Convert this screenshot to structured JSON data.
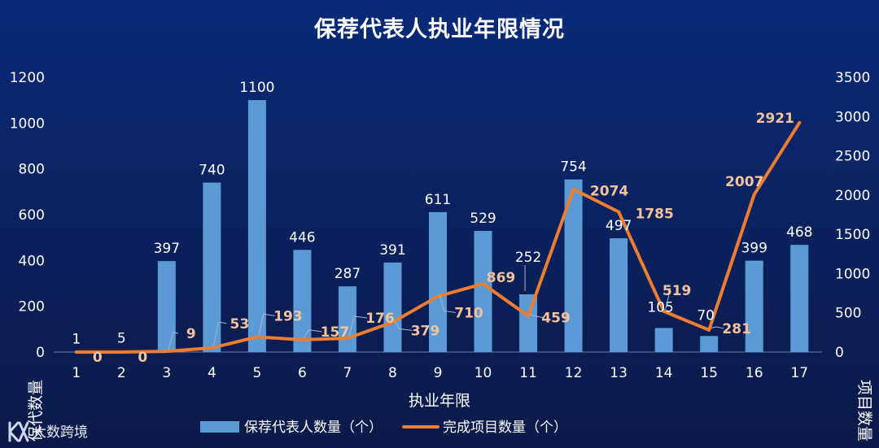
{
  "title": "保荐代表人执业年限情况",
  "chart_data": {
    "type": "bar+line",
    "title": "保荐代表人执业年限情况",
    "xlabel": "执业年限",
    "ylabel_left": "保代数量",
    "ylabel_right": "项目数量",
    "categories": [
      "1",
      "2",
      "3",
      "4",
      "5",
      "6",
      "7",
      "8",
      "9",
      "10",
      "11",
      "12",
      "13",
      "14",
      "15",
      "16",
      "17"
    ],
    "y_left": {
      "min": 0,
      "max": 1200,
      "ticks": [
        "0",
        "200",
        "400",
        "600",
        "800",
        "1000",
        "1200"
      ]
    },
    "y_right": {
      "min": 0,
      "max": 3500,
      "ticks": [
        "0",
        "500",
        "1000",
        "1500",
        "2000",
        "2500",
        "3000",
        "3500"
      ]
    },
    "series": [
      {
        "name": "保荐代表人数量（个）",
        "type": "bar",
        "axis": "left",
        "color": "#5b9bd5",
        "values": [
          1,
          5,
          397,
          740,
          1100,
          446,
          287,
          391,
          611,
          529,
          252,
          754,
          497,
          105,
          70,
          399,
          468
        ]
      },
      {
        "name": "完成项目数量（个）",
        "type": "line",
        "axis": "right",
        "color": "#ed7d31",
        "values": [
          0,
          0,
          9,
          53,
          193,
          157,
          176,
          379,
          710,
          869,
          459,
          2074,
          1785,
          519,
          281,
          2007,
          2921
        ]
      }
    ],
    "legend": "bottom-center",
    "grid": false
  },
  "watermark": {
    "text": "大数跨境",
    "icon": "kx-logo-icon"
  }
}
